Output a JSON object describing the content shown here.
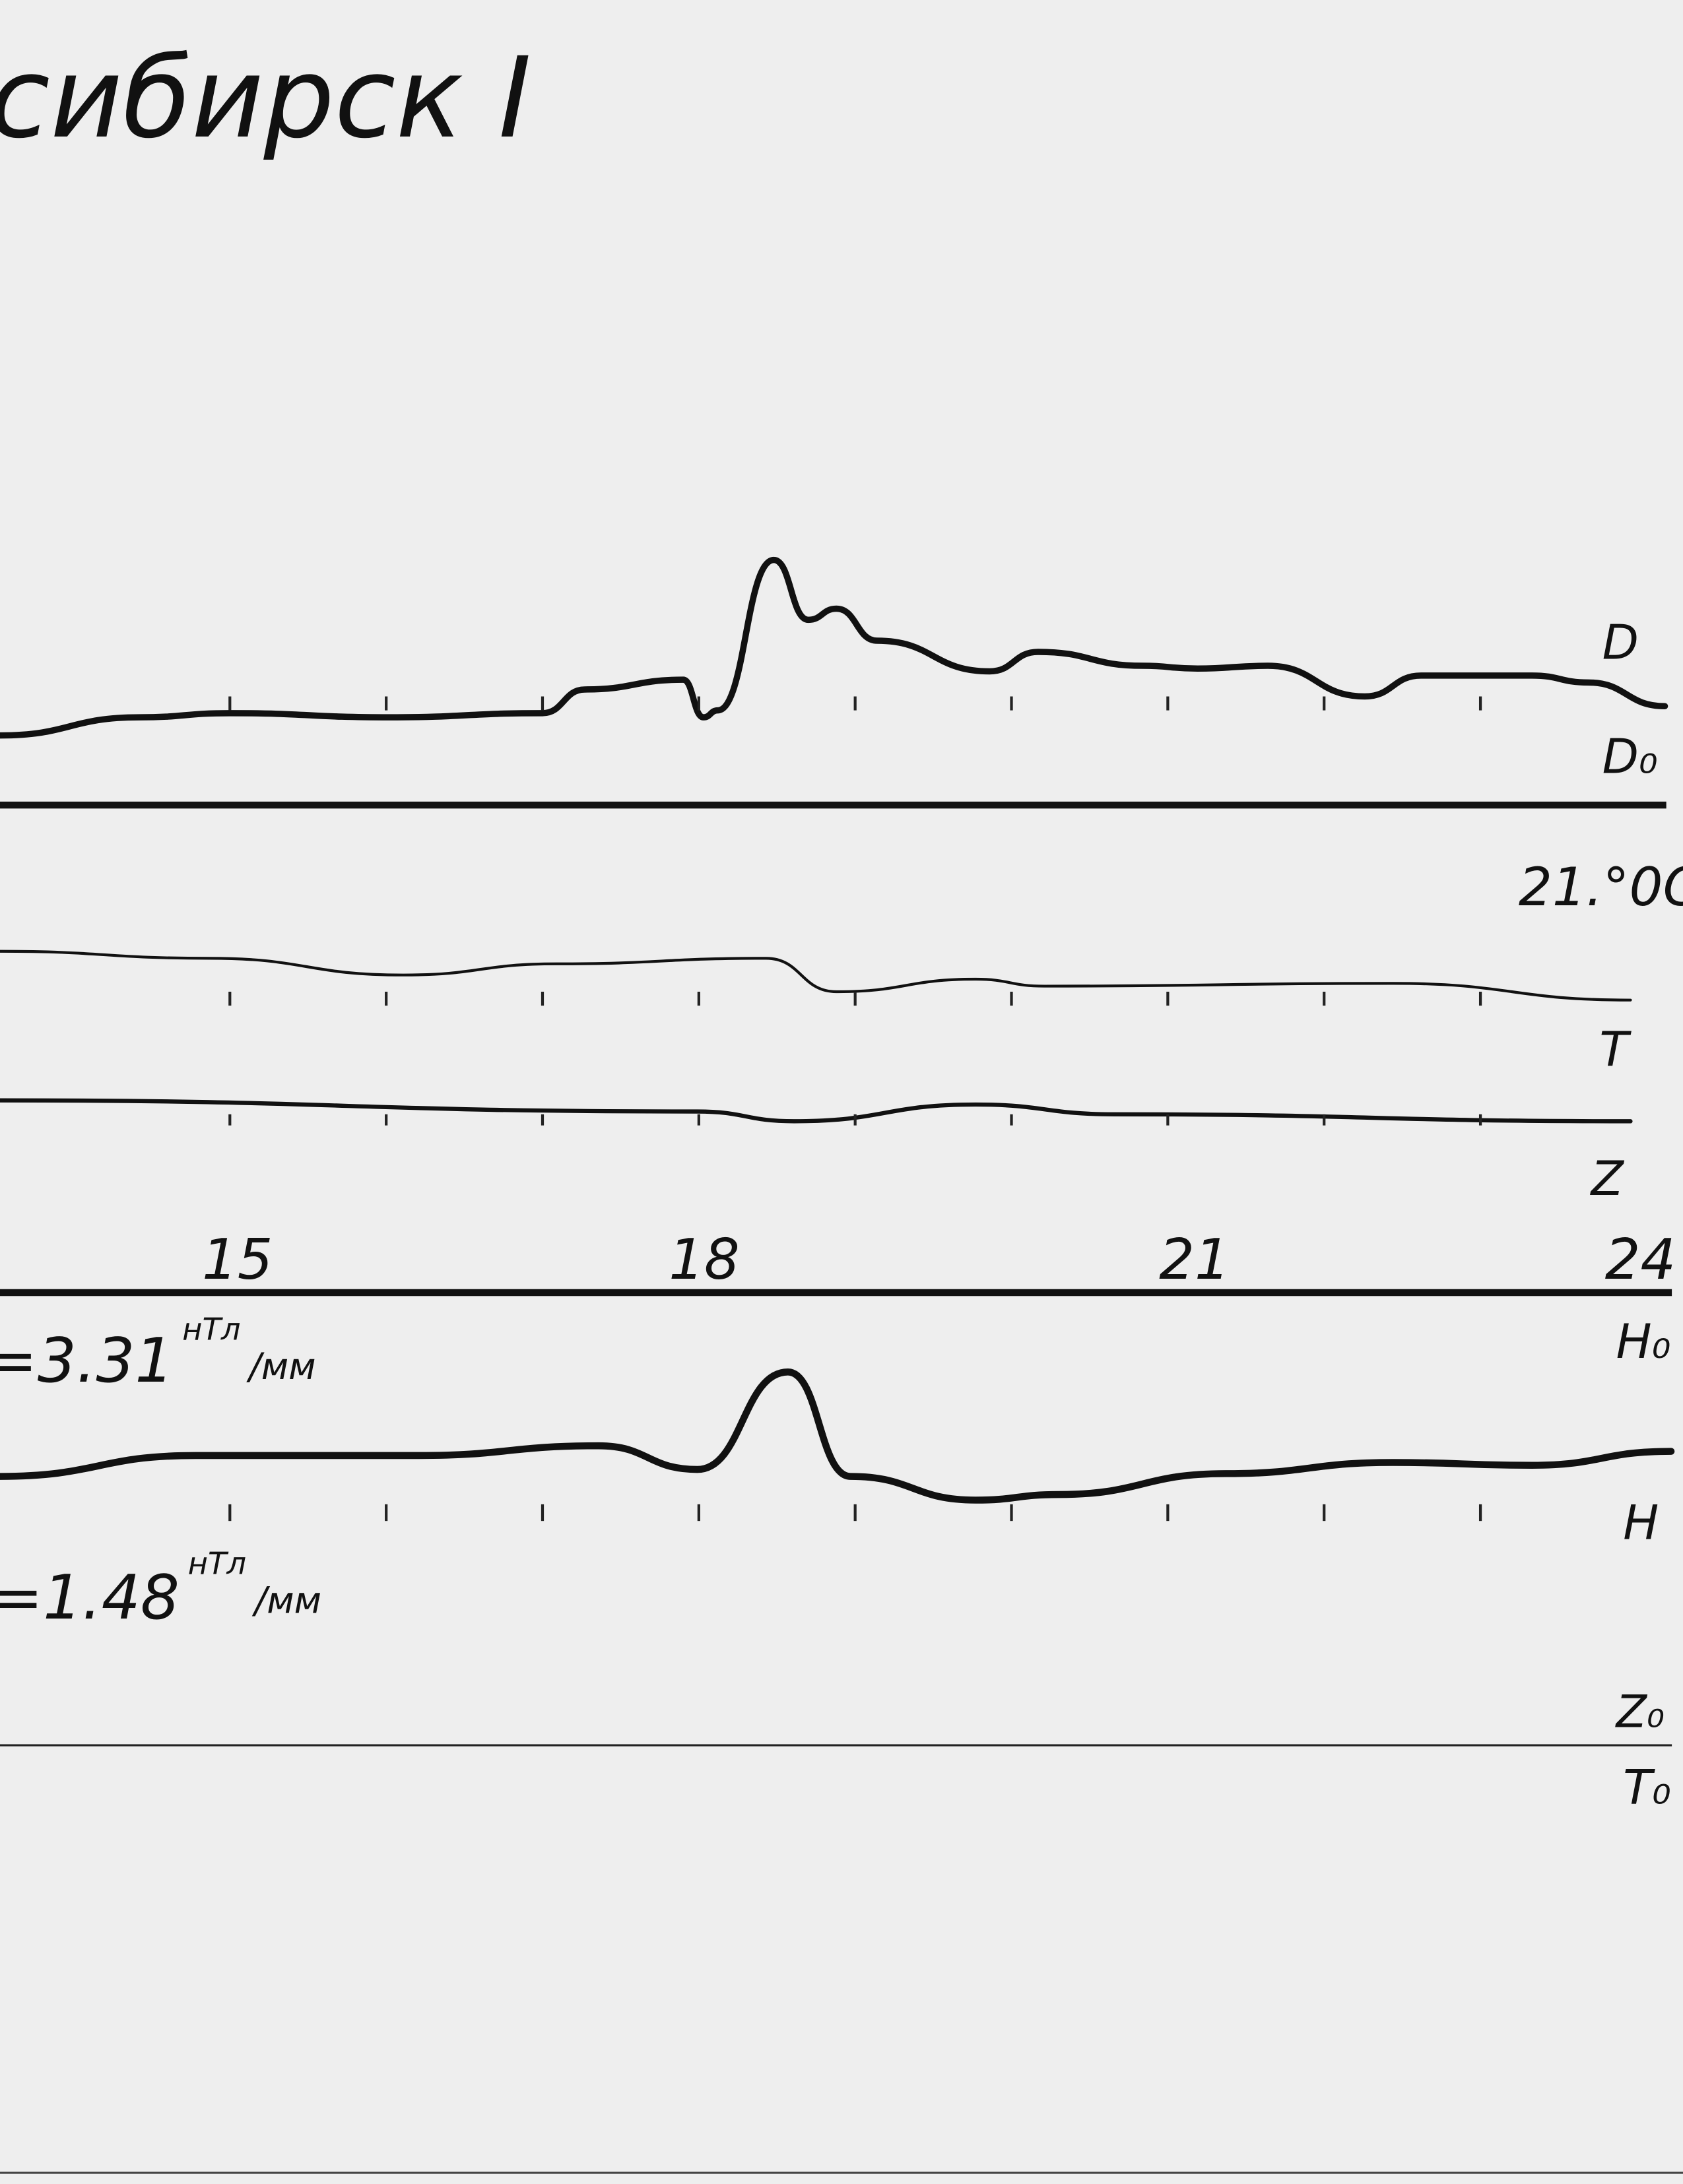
{
  "title": "сибирск I",
  "scales": {
    "h_scale": "=3.31",
    "h_unit": "нТл",
    "h_per": "/мм",
    "z_scale": "=1.48",
    "z_unit": "нТл",
    "z_per": "/мм"
  },
  "labels": {
    "D": "D",
    "D0": "D₀",
    "temperature": "21.°0C",
    "T": "T",
    "Z": "Z",
    "H0": "H₀",
    "H": "H",
    "Z0": "Z₀",
    "T0": "T₀"
  },
  "chart_data": {
    "type": "line",
    "title": "",
    "xlabel": "",
    "ylabel": "",
    "x_tick_labels": [
      "15",
      "18",
      "21",
      "24"
    ],
    "x_ticks": [
      15,
      18,
      21,
      24
    ],
    "xlim": [
      13.5,
      24.3
    ],
    "grid": false,
    "ink_color": "#111111",
    "paper_color": "#eeeeee",
    "series": [
      {
        "name": "D",
        "x": [
          13.53,
          14.42,
          15,
          16.02,
          17.0,
          17.27,
          17.9,
          18.03,
          18.12,
          18.48,
          18.7,
          18.88,
          19.14,
          19.86,
          20.17,
          20.84,
          21.19,
          21.64,
          22.26,
          22.62,
          23.33,
          23.69,
          24.18
        ],
        "y": [
          0,
          13,
          16,
          13,
          16,
          33,
          40,
          13,
          18,
          126,
          83,
          91,
          68,
          46,
          60,
          50,
          48,
          50,
          28,
          43,
          43,
          38,
          21
        ]
      },
      {
        "name": "T",
        "x": [
          13.53,
          14.87,
          16.11,
          17.09,
          18.43,
          18.88,
          19.77,
          20.21,
          22.44,
          23.96
        ],
        "y": [
          17,
          12,
          0,
          8,
          12,
          -12,
          -3,
          -8,
          -6,
          -18
        ]
      },
      {
        "name": "Z",
        "x": [
          13.53,
          17.99,
          18.61,
          19.77,
          20.66,
          23.96
        ],
        "y": [
          10,
          2,
          -5,
          7,
          0,
          -5
        ]
      },
      {
        "name": "H",
        "x": [
          13.53,
          14.78,
          16.2,
          17.36,
          17.99,
          18.57,
          18.97,
          19.77,
          20.3,
          21.37,
          22.44,
          23.33,
          24.22
        ],
        "y": [
          0,
          15,
          15,
          22,
          5,
          75,
          0,
          -17,
          -13,
          2,
          10,
          8,
          18
        ]
      }
    ]
  }
}
